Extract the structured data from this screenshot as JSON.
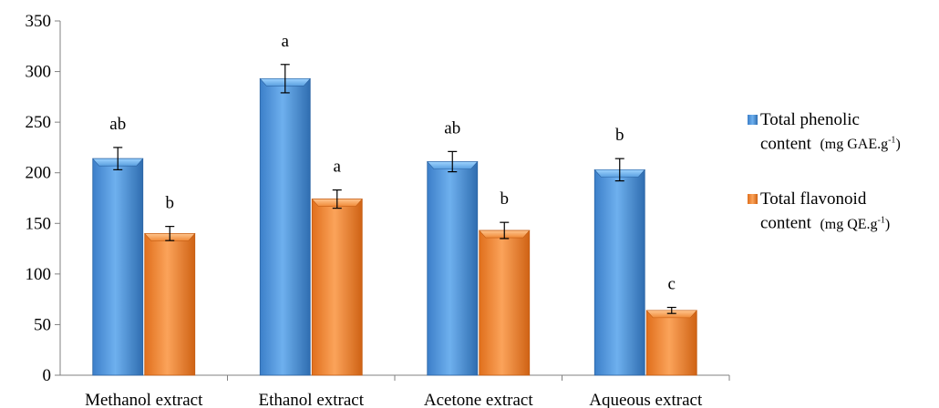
{
  "chart_data": {
    "type": "bar",
    "categories": [
      "Methanol extract",
      "Ethanol extract",
      "Acetone extract",
      "Aqueous extract"
    ],
    "ylim": [
      0,
      350
    ],
    "yticks": [
      0,
      50,
      100,
      150,
      200,
      250,
      300,
      350
    ],
    "grid": false,
    "legend_position": "right",
    "series": [
      {
        "name": "Total phenolic content (mg GAE.g-1)",
        "label_line1": "Total phenolic",
        "label_line2": "content",
        "unit_main": "(mg GAE.g",
        "unit_sup": "-1",
        "unit_close": ")",
        "color": "#4a90d9",
        "values": [
          214,
          293,
          211,
          203
        ],
        "errors": [
          11,
          14,
          10,
          11
        ],
        "annotations": [
          "ab",
          "a",
          "ab",
          "b"
        ]
      },
      {
        "name": "Total flavonoid content (mg QE.g-1)",
        "label_line1": "Total flavonoid",
        "label_line2": "content",
        "unit_main": "(mg QE.g",
        "unit_sup": "-1",
        "unit_close": ")",
        "color": "#f0842c",
        "values": [
          140,
          174,
          143,
          64
        ],
        "errors": [
          7,
          9,
          8,
          3
        ],
        "annotations": [
          "b",
          "a",
          "b",
          "c"
        ]
      }
    ]
  }
}
